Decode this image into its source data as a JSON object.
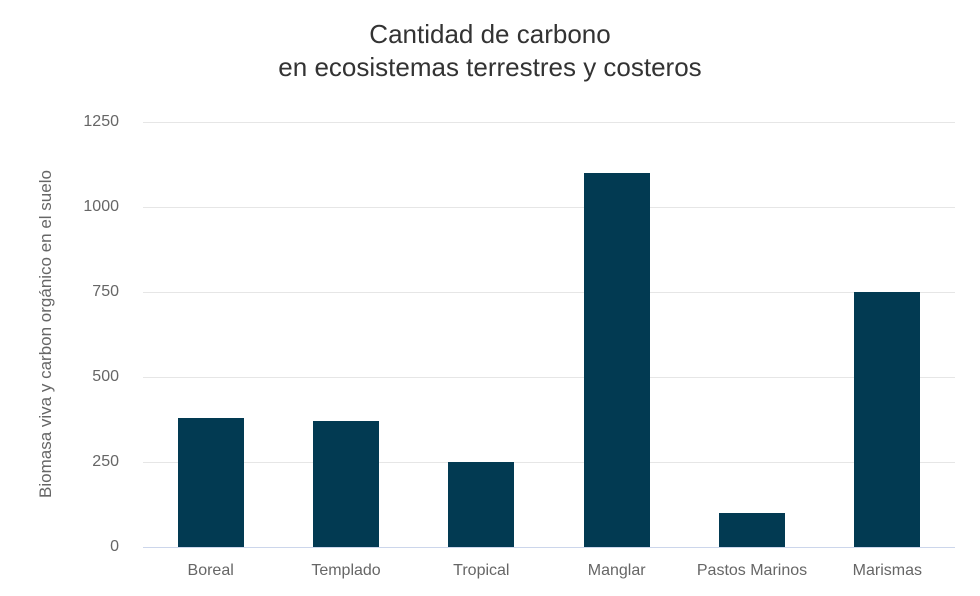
{
  "chart": {
    "title_line1": "Cantidad de carbono",
    "title_line2": "en ecosistemas terrestres y costeros",
    "ylabel": "Biomasa viva y carbon orgánico en el suelo",
    "bar_color": "#023a52",
    "gridline_color": "#e6e6e6",
    "axis_color": "#ccd6eb"
  },
  "chart_data": {
    "type": "bar",
    "title": "Cantidad de carbono en ecosistemas terrestres y costeros",
    "xlabel": "",
    "ylabel": "Biomasa viva y carbon orgánico en el suelo",
    "categories": [
      "Boreal",
      "Templado",
      "Tropical",
      "Manglar",
      "Pastos Marinos",
      "Marismas"
    ],
    "values": [
      380,
      370,
      250,
      1100,
      100,
      750
    ],
    "ylim": [
      0,
      1250
    ],
    "yticks": [
      "0",
      "250",
      "500",
      "750",
      "1000",
      "1250"
    ],
    "grid": true,
    "legend": null
  }
}
